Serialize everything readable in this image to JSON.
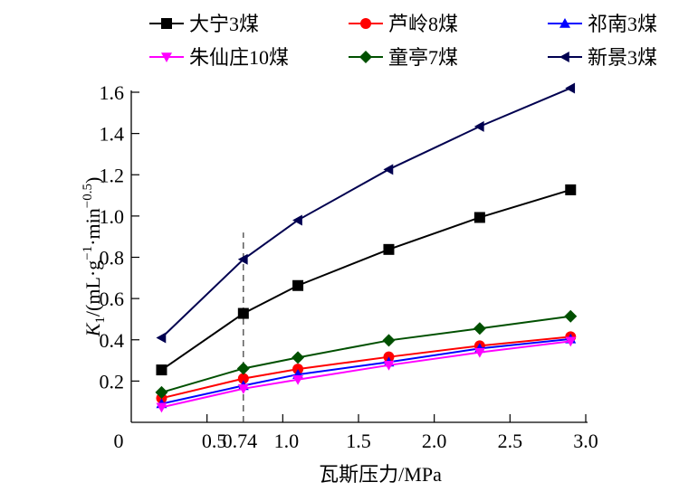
{
  "chart_data": {
    "type": "line",
    "title": "",
    "xlabel": "瓦斯压力/MPa",
    "ylabel": {
      "main": "K",
      "sub": "1",
      "rest1": "/(mL·g",
      "sup1": "−1",
      "rest2": "·min",
      "sup2": "−0.5",
      "close": ")"
    },
    "xlim": [
      0,
      3.0
    ],
    "ylim": [
      0,
      1.6
    ],
    "xticks": [
      0,
      0.5,
      0.74,
      1.0,
      1.5,
      2.0,
      2.5,
      3.0
    ],
    "xtick_labels": [
      "0",
      "0.5",
      "0.74",
      "1.0",
      "1.5",
      "2.0",
      "2.5",
      "3.0"
    ],
    "yticks": [
      0.2,
      0.4,
      0.6,
      0.8,
      1.0,
      1.2,
      1.4,
      1.6
    ],
    "ytick_labels": [
      "0.2",
      "0.4",
      "0.6",
      "0.8",
      "1.0",
      "1.2",
      "1.4",
      "1.6"
    ],
    "grid": false,
    "legend_position": "top",
    "reference_line": {
      "x": 0.74,
      "style": "dashed",
      "y_top": 0.92
    },
    "x": [
      0.2,
      0.74,
      1.1,
      1.7,
      2.3,
      2.9
    ],
    "series": [
      {
        "name": "大宁3煤",
        "color": "#000000",
        "marker": "square",
        "values": [
          0.254,
          0.528,
          0.663,
          0.838,
          0.993,
          1.127
        ]
      },
      {
        "name": "芦岭8煤",
        "color": "#ff0000",
        "marker": "circle",
        "values": [
          0.117,
          0.212,
          0.258,
          0.317,
          0.371,
          0.415
        ]
      },
      {
        "name": "祁南3煤",
        "color": "#0000ff",
        "marker": "triangle-up",
        "values": [
          0.09,
          0.178,
          0.232,
          0.292,
          0.358,
          0.404
        ]
      },
      {
        "name": "朱仙庄10煤",
        "color": "#ff00ff",
        "marker": "triangle-down",
        "values": [
          0.073,
          0.163,
          0.207,
          0.277,
          0.339,
          0.393
        ]
      },
      {
        "name": "童亭7煤",
        "color": "#005000",
        "marker": "diamond",
        "values": [
          0.145,
          0.261,
          0.314,
          0.397,
          0.455,
          0.514
        ]
      },
      {
        "name": "新景3煤",
        "color": "#000050",
        "marker": "triangle-left",
        "values": [
          0.41,
          0.79,
          0.98,
          1.226,
          1.434,
          1.62
        ]
      }
    ]
  }
}
